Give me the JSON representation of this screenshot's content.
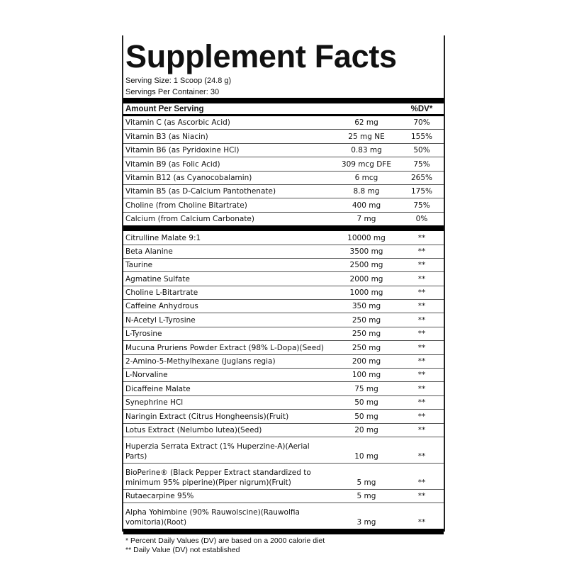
{
  "title": "Supplement Facts",
  "serving_size": "Serving Size: 1 Scoop (24.8 g)",
  "servings_per_container": "Servings Per Container: 30",
  "header": {
    "amount": "Amount Per Serving",
    "dv": "%DV*"
  },
  "vitamins": [
    {
      "name": "Vitamin C (as Ascorbic Acid)",
      "amount": "62 mg",
      "dv": "70%"
    },
    {
      "name": "Vitamin B3 (as Niacin)",
      "amount": "25 mg NE",
      "dv": "155%"
    },
    {
      "name": "Vitamin B6 (as Pyridoxine HCl)",
      "amount": "0.83 mg",
      "dv": "50%"
    },
    {
      "name": "Vitamin B9 (as Folic Acid)",
      "amount": "309 mcg DFE",
      "dv": "75%"
    },
    {
      "name": "Vitamin B12 (as Cyanocobalamin)",
      "amount": "6 mcg",
      "dv": "265%"
    },
    {
      "name": "Vitamin B5 (as D-Calcium Pantothenate)",
      "amount": "8.8 mg",
      "dv": "175%"
    },
    {
      "name": "Choline (from Choline Bitartrate)",
      "amount": "400 mg",
      "dv": "75%"
    },
    {
      "name": "Calcium (from Calcium Carbonate)",
      "amount": "7 mg",
      "dv": "0%"
    }
  ],
  "ingredients": [
    {
      "name": "Citrulline Malate 9:1",
      "amount": "10000 mg",
      "dv": "**"
    },
    {
      "name": "Beta Alanine",
      "amount": "3500 mg",
      "dv": "**"
    },
    {
      "name": "Taurine",
      "amount": "2500 mg",
      "dv": "**"
    },
    {
      "name": "Agmatine Sulfate",
      "amount": "2000 mg",
      "dv": "**"
    },
    {
      "name": "Choline L-Bitartrate",
      "amount": "1000 mg",
      "dv": "**"
    },
    {
      "name": "Caffeine Anhydrous",
      "amount": "350 mg",
      "dv": "**"
    },
    {
      "name": "N-Acetyl L-Tyrosine",
      "amount": "250 mg",
      "dv": "**"
    },
    {
      "name": "L-Tyrosine",
      "amount": "250 mg",
      "dv": "**"
    },
    {
      "name": "Mucuna Pruriens Powder Extract (98% L-Dopa)(Seed)",
      "amount": "250 mg",
      "dv": "**"
    },
    {
      "name": "2-Amino-5-Methylhexane (Juglans regia)",
      "amount": "200 mg",
      "dv": "**"
    },
    {
      "name": "L-Norvaline",
      "amount": "100 mg",
      "dv": "**"
    },
    {
      "name": "Dicaffeine Malate",
      "amount": "75 mg",
      "dv": "**"
    },
    {
      "name": "Synephrine HCl",
      "amount": "50 mg",
      "dv": "**"
    },
    {
      "name": "Naringin Extract (Citrus Hongheensis)(Fruit)",
      "amount": "50 mg",
      "dv": "**"
    },
    {
      "name": "Lotus Extract (Nelumbo lutea)(Seed)",
      "amount": "20 mg",
      "dv": "**"
    },
    {
      "name": "Huperzia Serrata Extract (1% Huperzine-A)(Aerial Parts)",
      "amount": "10 mg",
      "dv": "**",
      "two": true
    },
    {
      "name": "BioPerine® (Black Pepper Extract standardized to minimum 95% piperine)(Piper nigrum)(Fruit)",
      "amount": "5 mg",
      "dv": "**",
      "two": true
    },
    {
      "name": "Rutaecarpine 95%",
      "amount": "5 mg",
      "dv": "**"
    },
    {
      "name": "Alpha Yohimbine (90% Rauwolscine)(Rauwolfia vomitoria)(Root)",
      "amount": "3 mg",
      "dv": "**",
      "two": true
    }
  ],
  "footnotes": [
    "* Percent Daily Values (DV) are based on a 2000 calorie diet",
    "** Daily Value (DV) not established"
  ]
}
